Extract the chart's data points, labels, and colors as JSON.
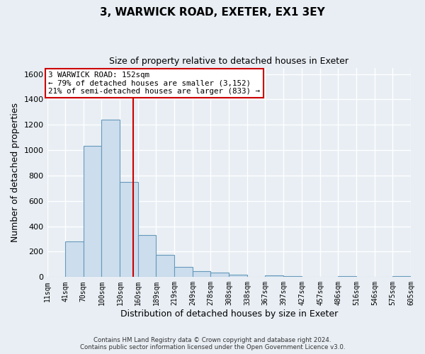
{
  "title": "3, WARWICK ROAD, EXETER, EX1 3EY",
  "subtitle": "Size of property relative to detached houses in Exeter",
  "xlabel": "Distribution of detached houses by size in Exeter",
  "ylabel": "Number of detached properties",
  "bin_labels": [
    "11sqm",
    "41sqm",
    "70sqm",
    "100sqm",
    "130sqm",
    "160sqm",
    "189sqm",
    "219sqm",
    "249sqm",
    "278sqm",
    "308sqm",
    "338sqm",
    "367sqm",
    "397sqm",
    "427sqm",
    "457sqm",
    "486sqm",
    "516sqm",
    "546sqm",
    "575sqm",
    "605sqm"
  ],
  "bin_edges": [
    11,
    41,
    70,
    100,
    130,
    160,
    189,
    219,
    249,
    278,
    308,
    338,
    367,
    397,
    427,
    457,
    486,
    516,
    546,
    575,
    605
  ],
  "bar_heights": [
    0,
    280,
    1035,
    1240,
    750,
    330,
    175,
    80,
    48,
    38,
    20,
    0,
    15,
    10,
    0,
    0,
    10,
    0,
    0,
    10
  ],
  "bar_color": "#ccdded",
  "bar_edge_color": "#6699bb",
  "ylim": [
    0,
    1650
  ],
  "yticks": [
    0,
    200,
    400,
    600,
    800,
    1000,
    1200,
    1400,
    1600
  ],
  "property_size": 152,
  "property_line_color": "#cc0000",
  "annotation_line1": "3 WARWICK ROAD: 152sqm",
  "annotation_line2": "← 79% of detached houses are smaller (3,152)",
  "annotation_line3": "21% of semi-detached houses are larger (833) →",
  "annotation_box_color": "#ffffff",
  "annotation_box_edge_color": "#cc0000",
  "footer_line1": "Contains HM Land Registry data © Crown copyright and database right 2024.",
  "footer_line2": "Contains public sector information licensed under the Open Government Licence v3.0.",
  "background_color": "#e8eef4",
  "grid_color": "#ffffff"
}
